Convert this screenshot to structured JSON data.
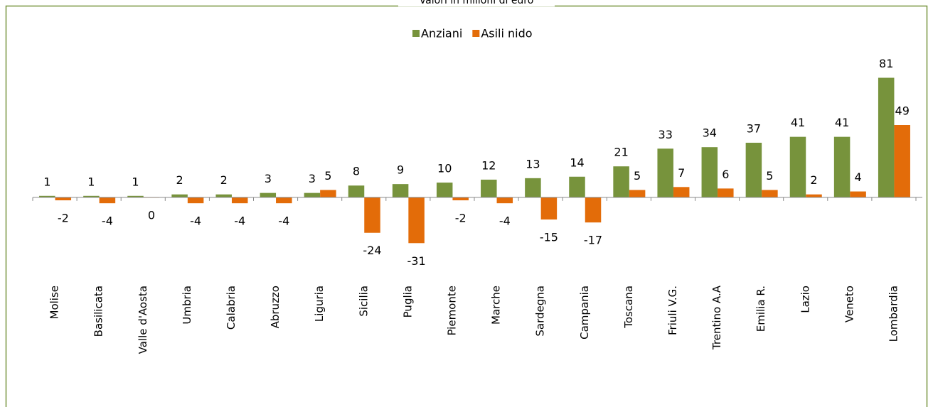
{
  "chart_data": {
    "type": "bar",
    "title": "Valori in milioni di euro",
    "categories": [
      "Molise",
      "Basilicata",
      "Valle d'Aosta",
      "Umbria",
      "Calabria",
      "Abruzzo",
      "Liguria",
      "Sicilia",
      "Puglia",
      "Piemonte",
      "Marche",
      "Sardegna",
      "Campania",
      "Toscana",
      "Friuli V.G.",
      "Trentino A.A",
      "Emilia R.",
      "Lazio",
      "Veneto",
      "Lombardia"
    ],
    "series": [
      {
        "name": "Anziani",
        "color": "#77933c",
        "values": [
          1,
          1,
          1,
          2,
          2,
          3,
          3,
          8,
          9,
          10,
          12,
          13,
          14,
          21,
          33,
          34,
          37,
          41,
          41,
          81
        ]
      },
      {
        "name": "Asili nido",
        "color": "#e36c09",
        "values": [
          -2,
          -4,
          0,
          -4,
          -4,
          -4,
          5,
          -24,
          -31,
          -2,
          -4,
          -15,
          -17,
          5,
          7,
          6,
          5,
          2,
          4,
          49
        ]
      }
    ],
    "ylim": [
      -40,
      100
    ],
    "legend": "top"
  }
}
